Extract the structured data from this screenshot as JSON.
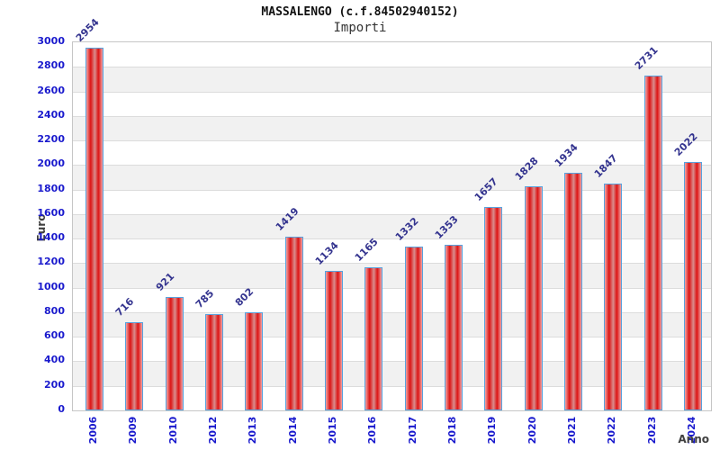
{
  "page": {
    "background": "#ffffff"
  },
  "chart_data": {
    "type": "bar",
    "title": "MASSALENGO (c.f.84502940152)",
    "subtitle": "Importi",
    "xlabel": "Anno",
    "ylabel": "Euro",
    "categories": [
      "2006",
      "2009",
      "2010",
      "2012",
      "2013",
      "2014",
      "2015",
      "2016",
      "2017",
      "2018",
      "2019",
      "2020",
      "2021",
      "2022",
      "2023",
      "2024"
    ],
    "values": [
      2954,
      716,
      921,
      785,
      802,
      1419,
      1134,
      1165,
      1332,
      1353,
      1657,
      1828,
      1934,
      1847,
      2731,
      2022
    ],
    "ylim": [
      0,
      3000
    ],
    "ytick_step": 200,
    "grid": true,
    "legend": "none",
    "value_labels_rotation_deg": -45,
    "x_labels_rotation_deg": -90,
    "colors": {
      "bar_red_dark": "#dc1414",
      "bar_red_light": "#f2a2a2",
      "bar_highlight": "#d98d8d",
      "bar_border": "#58a2de",
      "tick_label": "#1a1acd",
      "value_label": "#34348f",
      "axis_title": "#404040",
      "band_fill": "#f1f1f1",
      "grid_line": "#dcdcdc",
      "plot_border": "#c6c6c6"
    }
  }
}
